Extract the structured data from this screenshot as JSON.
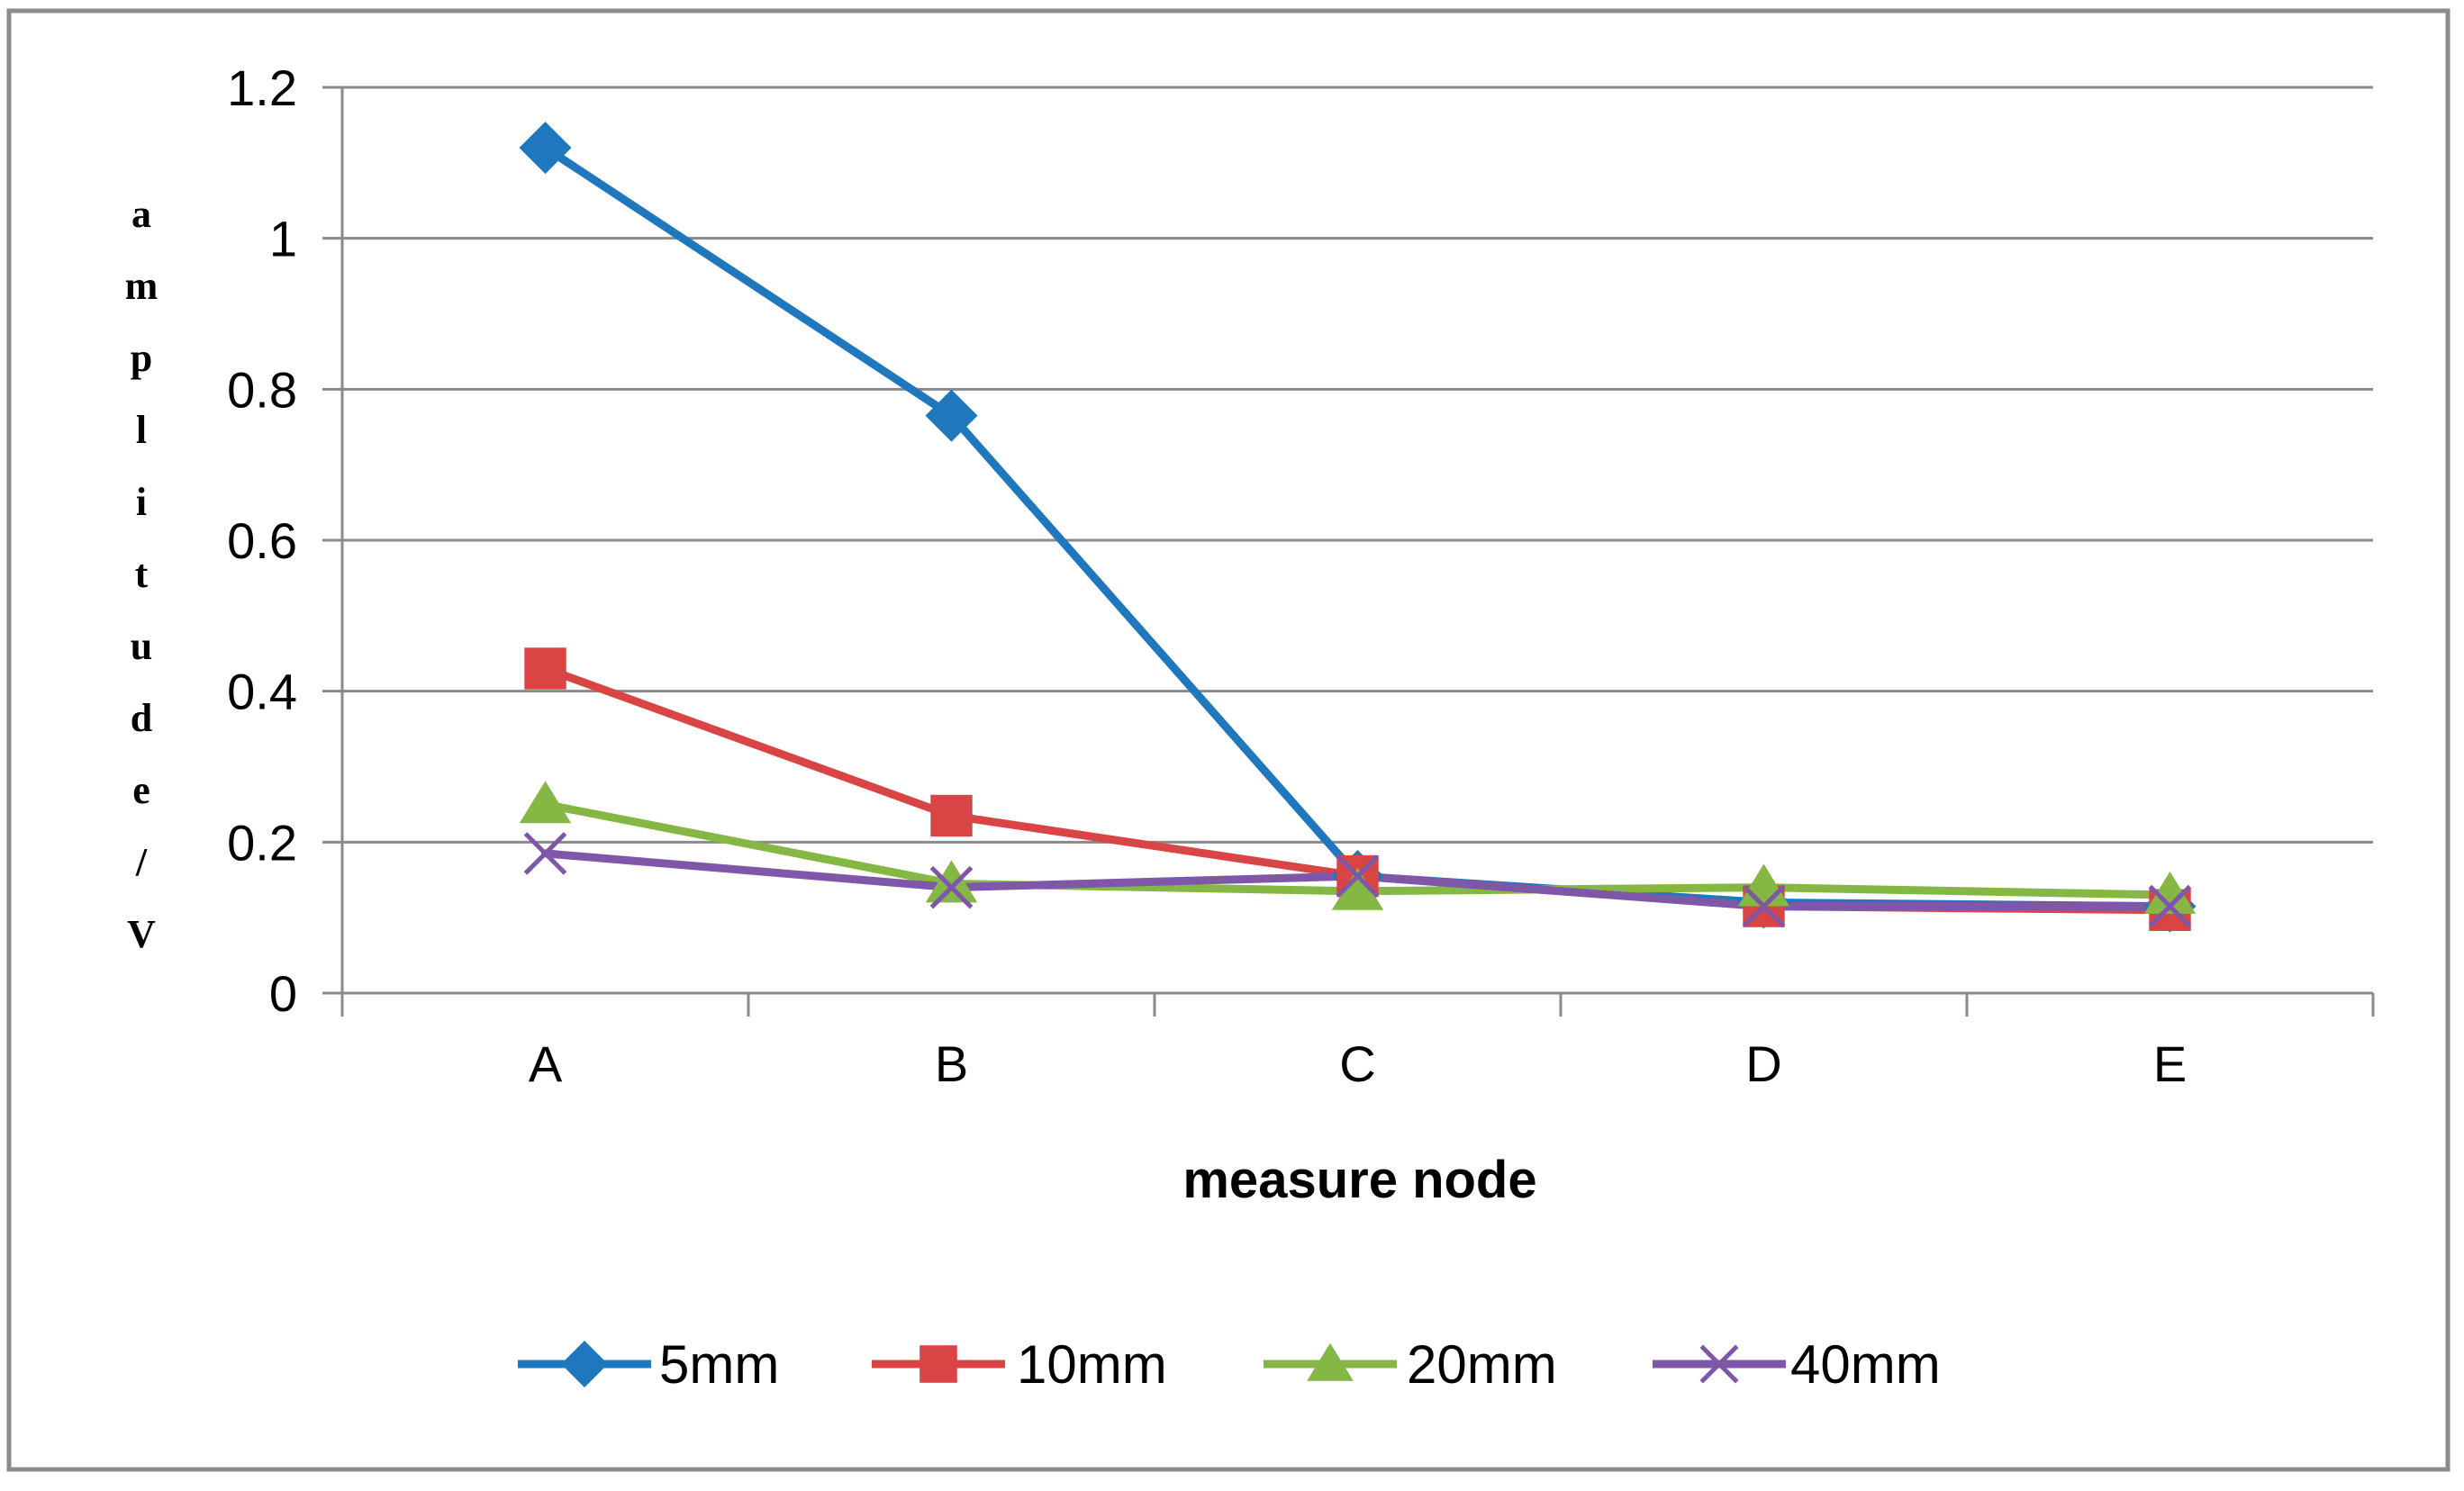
{
  "chart_data": {
    "type": "line",
    "title": "",
    "xlabel": "measure node",
    "ylabel": "amplitude/V",
    "categories": [
      "A",
      "B",
      "C",
      "D",
      "E"
    ],
    "ylim": [
      0,
      1.2
    ],
    "yticks": [
      0,
      0.2,
      0.4,
      0.6,
      0.8,
      1,
      1.2
    ],
    "ytick_labels": [
      "0",
      "0.2",
      "0.4",
      "0.6",
      "0.8",
      "1",
      "1.2"
    ],
    "grid": "horizontal",
    "legend_position": "bottom",
    "series": [
      {
        "name": "5mm",
        "values": [
          1.12,
          0.765,
          0.155,
          0.12,
          0.115
        ],
        "color": "#1F77BD",
        "marker": "diamond"
      },
      {
        "name": "10mm",
        "values": [
          0.43,
          0.235,
          0.155,
          0.115,
          0.11
        ],
        "color": "#D94545",
        "marker": "square"
      },
      {
        "name": "20mm",
        "values": [
          0.25,
          0.145,
          0.135,
          0.14,
          0.13
        ],
        "color": "#84B744",
        "marker": "triangle"
      },
      {
        "name": "40mm",
        "values": [
          0.185,
          0.14,
          0.155,
          0.115,
          0.115
        ],
        "color": "#7E57A8",
        "marker": "x"
      }
    ]
  }
}
